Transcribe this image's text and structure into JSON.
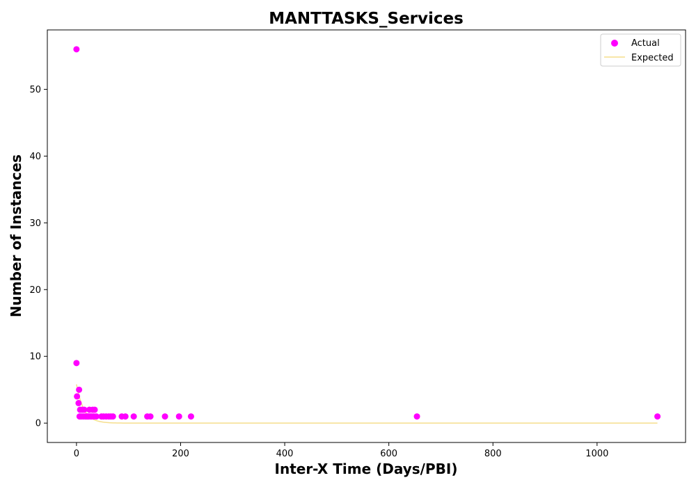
{
  "chart_data": {
    "type": "scatter",
    "title": "MANTTASKS_Services",
    "xlabel": "Inter-X Time (Days/PBI)",
    "ylabel": "Number of Instances",
    "xlim": [
      -56,
      1170
    ],
    "ylim": [
      -2.9,
      58.9
    ],
    "xticks": [
      0,
      200,
      400,
      600,
      800,
      1000
    ],
    "yticks": [
      0,
      10,
      20,
      30,
      40,
      50
    ],
    "grid": false,
    "legend": "top-right",
    "series": [
      {
        "name": "Actual",
        "kind": "scatter",
        "color": "#ff00ff",
        "points": [
          [
            0,
            56
          ],
          [
            0,
            9
          ],
          [
            1,
            4
          ],
          [
            4,
            3
          ],
          [
            5,
            5
          ],
          [
            6,
            1
          ],
          [
            7,
            2
          ],
          [
            9,
            1
          ],
          [
            11,
            2
          ],
          [
            13,
            1
          ],
          [
            15,
            2
          ],
          [
            17,
            1
          ],
          [
            19,
            1
          ],
          [
            21,
            1
          ],
          [
            23,
            1
          ],
          [
            25,
            2
          ],
          [
            27,
            1
          ],
          [
            29,
            1
          ],
          [
            31,
            2
          ],
          [
            33,
            1
          ],
          [
            35,
            2
          ],
          [
            38,
            1
          ],
          [
            48,
            1
          ],
          [
            52,
            1
          ],
          [
            57,
            1
          ],
          [
            62,
            1
          ],
          [
            66,
            1
          ],
          [
            70,
            1
          ],
          [
            87,
            1
          ],
          [
            94,
            1
          ],
          [
            110,
            1
          ],
          [
            136,
            1
          ],
          [
            142,
            1
          ],
          [
            170,
            1
          ],
          [
            197,
            1
          ],
          [
            220,
            1
          ],
          [
            654,
            1
          ],
          [
            1116,
            1
          ]
        ]
      },
      {
        "name": "Expected",
        "kind": "line",
        "color": "#f5de8c",
        "amplitude": 5.8,
        "decay_days": 14,
        "x_end": 1116
      }
    ]
  }
}
